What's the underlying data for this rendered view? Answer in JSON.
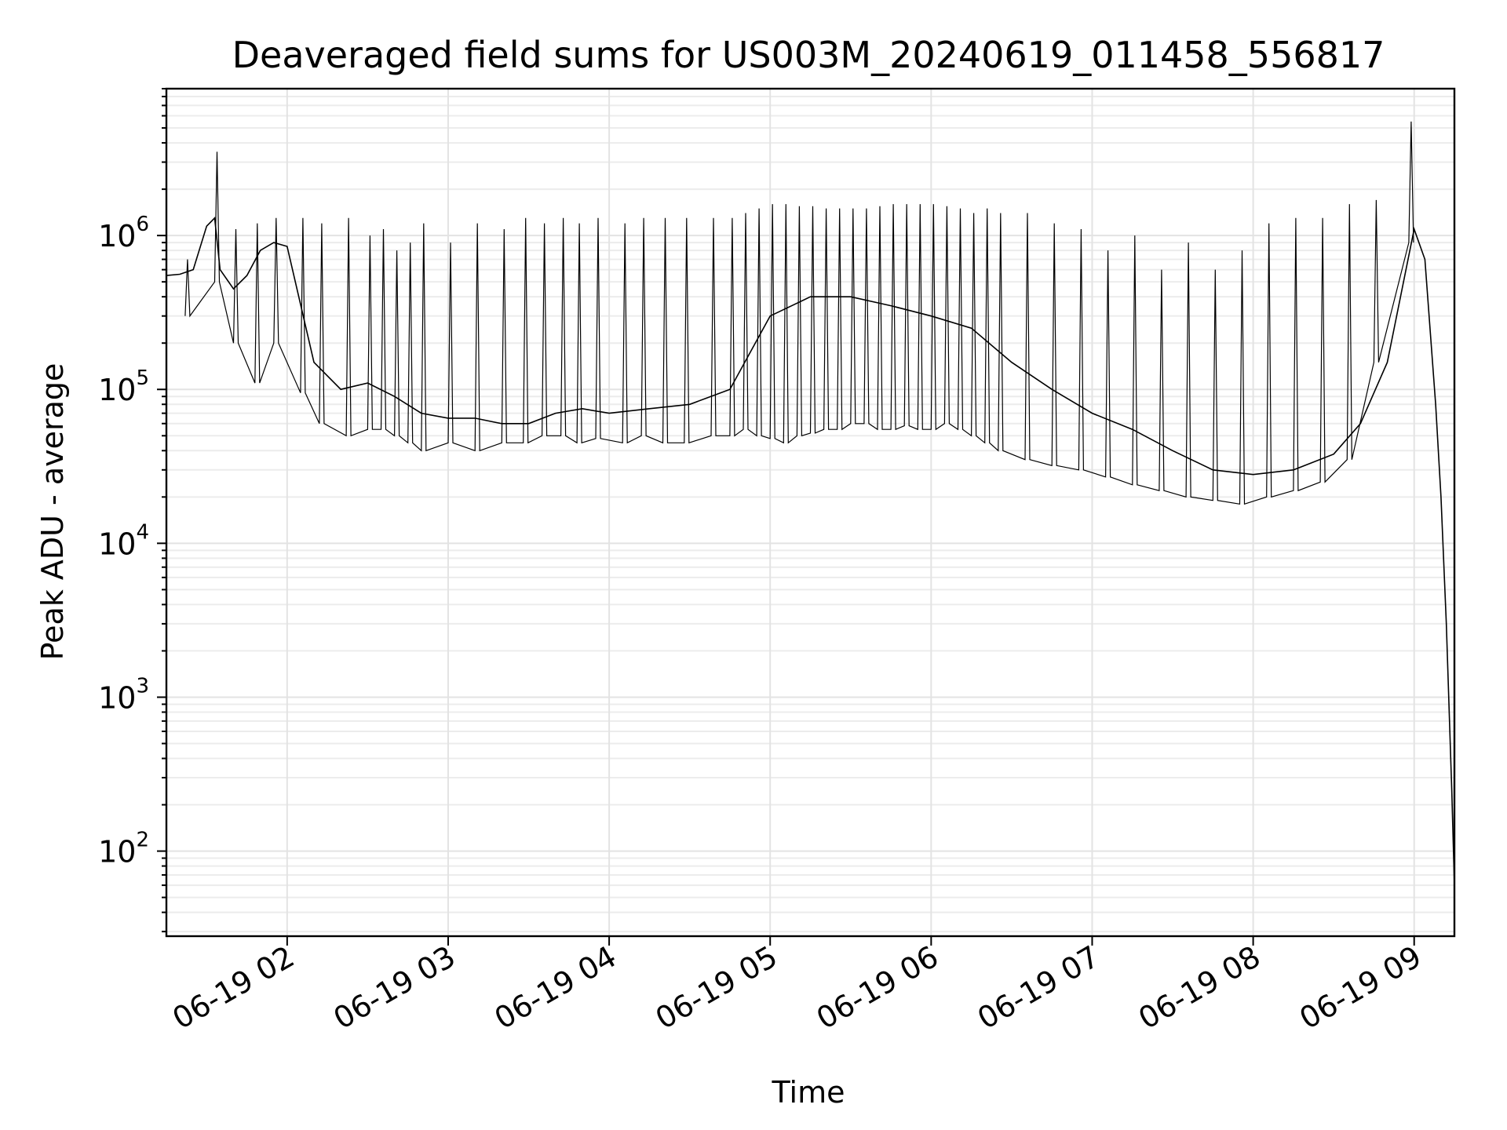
{
  "chart_data": {
    "type": "line",
    "title": "Deaveraged field sums for US003M_20240619_011458_556817",
    "xlabel": "Time",
    "ylabel": "Peak ADU - average",
    "yscale": "log",
    "ylim": [
      28,
      9000000
    ],
    "xlim": [
      "06-19 01:15",
      "06-19 09:15"
    ],
    "grid": true,
    "line_color": "#000000",
    "x_tick_labels": [
      "06-19 02",
      "06-19 03",
      "06-19 04",
      "06-19 05",
      "06-19 06",
      "06-19 07",
      "06-19 08",
      "06-19 09"
    ],
    "y_ticks": [
      {
        "base": "10",
        "exp": "2",
        "value": 100
      },
      {
        "base": "10",
        "exp": "3",
        "value": 1000
      },
      {
        "base": "10",
        "exp": "4",
        "value": 10000
      },
      {
        "base": "10",
        "exp": "5",
        "value": 100000
      },
      {
        "base": "10",
        "exp": "6",
        "value": 1000000
      }
    ],
    "series": [
      {
        "x": [
          "06-19 01:15",
          "06-19 01:20",
          "06-19 01:25",
          "06-19 01:30",
          "06-19 01:33",
          "06-19 01:35",
          "06-19 01:40",
          "06-19 01:45",
          "06-19 01:50",
          "06-19 01:55",
          "06-19 02:00",
          "06-19 02:10",
          "06-19 02:20",
          "06-19 02:30",
          "06-19 02:40",
          "06-19 02:50",
          "06-19 03:00",
          "06-19 03:10",
          "06-19 03:20",
          "06-19 03:30",
          "06-19 03:40",
          "06-19 03:50",
          "06-19 04:00",
          "06-19 04:15",
          "06-19 04:30",
          "06-19 04:45",
          "06-19 05:00",
          "06-19 05:15",
          "06-19 05:30",
          "06-19 05:45",
          "06-19 06:00",
          "06-19 06:15",
          "06-19 06:30",
          "06-19 06:45",
          "06-19 07:00",
          "06-19 07:15",
          "06-19 07:30",
          "06-19 07:45",
          "06-19 08:00",
          "06-19 08:15",
          "06-19 08:30",
          "06-19 08:40",
          "06-19 08:50",
          "06-19 09:00",
          "06-19 09:04",
          "06-19 09:08",
          "06-19 09:10",
          "06-19 09:12",
          "06-19 09:14",
          "06-19 09:15"
        ],
        "y": [
          550000,
          560000,
          600000,
          1150000,
          1300000,
          600000,
          450000,
          550000,
          800000,
          900000,
          850000,
          150000,
          100000,
          110000,
          90000,
          70000,
          65000,
          65000,
          60000,
          60000,
          70000,
          75000,
          70000,
          75000,
          80000,
          100000,
          300000,
          400000,
          400000,
          350000,
          300000,
          250000,
          150000,
          100000,
          70000,
          55000,
          40000,
          30000,
          28000,
          30000,
          38000,
          60000,
          150000,
          1100000,
          700000,
          80000,
          20000,
          3000,
          250,
          60
        ]
      }
    ],
    "spike_series": {
      "x": [
        "06-19 01:22",
        "06-19 01:33",
        "06-19 01:40",
        "06-19 01:48",
        "06-19 01:55",
        "06-19 02:05",
        "06-19 02:12",
        "06-19 02:22",
        "06-19 02:30",
        "06-19 02:35",
        "06-19 02:40",
        "06-19 02:45",
        "06-19 02:50",
        "06-19 03:00",
        "06-19 03:10",
        "06-19 03:20",
        "06-19 03:28",
        "06-19 03:35",
        "06-19 03:42",
        "06-19 03:48",
        "06-19 03:55",
        "06-19 04:05",
        "06-19 04:12",
        "06-19 04:20",
        "06-19 04:28",
        "06-19 04:38",
        "06-19 04:45",
        "06-19 04:50",
        "06-19 04:55",
        "06-19 05:00",
        "06-19 05:05",
        "06-19 05:10",
        "06-19 05:15",
        "06-19 05:20",
        "06-19 05:25",
        "06-19 05:30",
        "06-19 05:35",
        "06-19 05:40",
        "06-19 05:45",
        "06-19 05:50",
        "06-19 05:55",
        "06-19 06:00",
        "06-19 06:05",
        "06-19 06:10",
        "06-19 06:15",
        "06-19 06:20",
        "06-19 06:25",
        "06-19 06:35",
        "06-19 06:45",
        "06-19 06:55",
        "06-19 07:05",
        "06-19 07:15",
        "06-19 07:25",
        "06-19 07:35",
        "06-19 07:45",
        "06-19 07:55",
        "06-19 08:05",
        "06-19 08:15",
        "06-19 08:25",
        "06-19 08:35",
        "06-19 08:45",
        "06-19 08:58"
      ],
      "high": [
        700000,
        3500000,
        1100000,
        1200000,
        1300000,
        1300000,
        1200000,
        1300000,
        1000000,
        1100000,
        800000,
        900000,
        1200000,
        900000,
        1200000,
        1100000,
        1300000,
        1200000,
        1300000,
        1200000,
        1300000,
        1200000,
        1300000,
        1300000,
        1300000,
        1300000,
        1300000,
        1400000,
        1500000,
        1600000,
        1600000,
        1550000,
        1550000,
        1500000,
        1500000,
        1500000,
        1500000,
        1550000,
        1600000,
        1600000,
        1600000,
        1600000,
        1550000,
        1500000,
        1400000,
        1500000,
        1400000,
        1400000,
        1200000,
        1100000,
        800000,
        1000000,
        600000,
        900000,
        600000,
        800000,
        1200000,
        1300000,
        1300000,
        1600000,
        1700000,
        5500000
      ],
      "low": [
        300000,
        500000,
        200000,
        110000,
        200000,
        95000,
        60000,
        50000,
        55000,
        55000,
        50000,
        45000,
        40000,
        45000,
        40000,
        45000,
        45000,
        50000,
        50000,
        45000,
        48000,
        45000,
        50000,
        45000,
        45000,
        50000,
        50000,
        55000,
        50000,
        48000,
        45000,
        50000,
        52000,
        55000,
        55000,
        60000,
        60000,
        55000,
        55000,
        58000,
        55000,
        55000,
        60000,
        55000,
        50000,
        45000,
        40000,
        35000,
        32000,
        30000,
        27000,
        24000,
        22000,
        20000,
        19000,
        18000,
        20000,
        22000,
        25000,
        35000,
        150000,
        900000
      ]
    }
  }
}
